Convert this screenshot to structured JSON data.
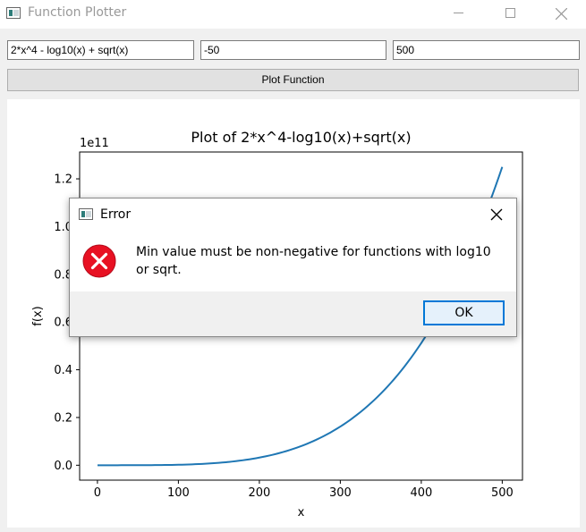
{
  "window": {
    "title": "Function Plotter"
  },
  "inputs": {
    "function": "2*x^4 - log10(x) + sqrt(x)",
    "min": "-50",
    "max": "500"
  },
  "plot_button": "Plot Function",
  "colors": {
    "line": "#1f77b4",
    "ok_border": "#0078d7",
    "error_red": "#e81123"
  },
  "chart_data": {
    "type": "line",
    "title": "Plot of 2*x^4-log10(x)+sqrt(x)",
    "xlabel": "x",
    "ylabel": "f(x)",
    "offset_text": "1e11",
    "xlim": [
      -22,
      525
    ],
    "ylim": [
      -6250000000,
      131250000000
    ],
    "xticks": [
      0,
      100,
      200,
      300,
      400,
      500
    ],
    "yticks": [
      0,
      20000000000,
      40000000000,
      60000000000,
      80000000000,
      100000000000,
      120000000000
    ],
    "ytick_labels": [
      "0.0",
      "0.2",
      "0.4",
      "0.6",
      "0.8",
      "1.0",
      "1.2"
    ],
    "grid": false,
    "series": [
      {
        "function": "2*x^4 - log10(x) + sqrt(x)",
        "x_range": [
          0.1,
          500
        ],
        "samples": 120
      }
    ]
  },
  "dialog": {
    "title": "Error",
    "message": "Min value must be non-negative for functions with log10 or sqrt.",
    "ok_label": "OK"
  }
}
